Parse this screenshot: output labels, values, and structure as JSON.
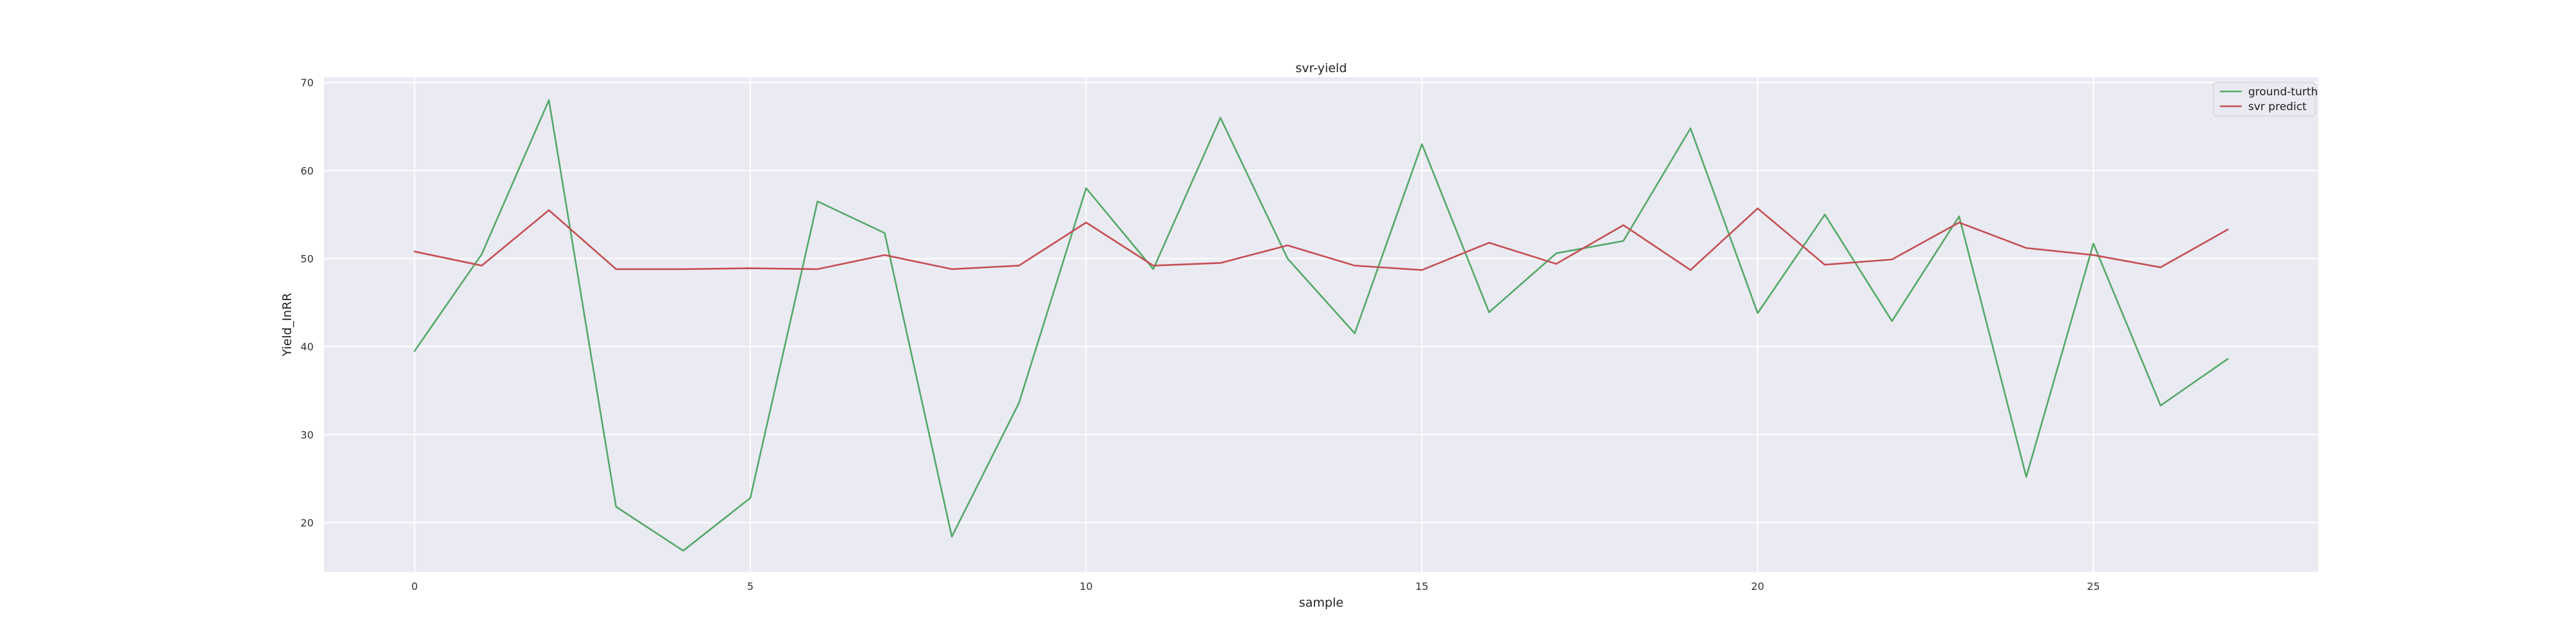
{
  "chart_data": {
    "type": "line",
    "title": "svr-yield",
    "xlabel": "sample",
    "ylabel": "Yield_InRR",
    "xlim": [
      -1.35,
      28.35
    ],
    "ylim": [
      14.4,
      70.6
    ],
    "xticks": [
      0,
      5,
      10,
      15,
      20,
      25
    ],
    "yticks": [
      20,
      30,
      40,
      50,
      60,
      70
    ],
    "grid": true,
    "legend_position": "top-right",
    "x": [
      0,
      1,
      2,
      3,
      4,
      5,
      6,
      7,
      8,
      9,
      10,
      11,
      12,
      13,
      14,
      15,
      16,
      17,
      18,
      19,
      20,
      21,
      22,
      23,
      24,
      25,
      26,
      27
    ],
    "series": [
      {
        "name": "ground-turth",
        "color": "#55a868",
        "values": [
          39.5,
          50.5,
          68.0,
          21.8,
          16.8,
          22.8,
          56.5,
          52.9,
          18.4,
          33.6,
          58.0,
          48.8,
          66.0,
          50.0,
          41.5,
          63.0,
          43.9,
          50.6,
          52.0,
          64.8,
          43.8,
          55.0,
          42.9,
          54.8,
          25.2,
          51.7,
          33.3,
          38.6
        ]
      },
      {
        "name": "svr predict",
        "color": "#c44e52",
        "values": [
          50.8,
          49.2,
          55.5,
          48.8,
          48.8,
          48.9,
          48.8,
          50.4,
          48.8,
          49.2,
          54.1,
          49.2,
          49.5,
          51.5,
          49.2,
          48.7,
          51.8,
          49.4,
          53.8,
          48.7,
          55.7,
          49.3,
          49.9,
          54.1,
          51.2,
          50.4,
          49.0,
          53.3
        ]
      }
    ]
  },
  "style": {
    "plot_background": "#eaeaf2",
    "grid_color": "#ffffff"
  }
}
